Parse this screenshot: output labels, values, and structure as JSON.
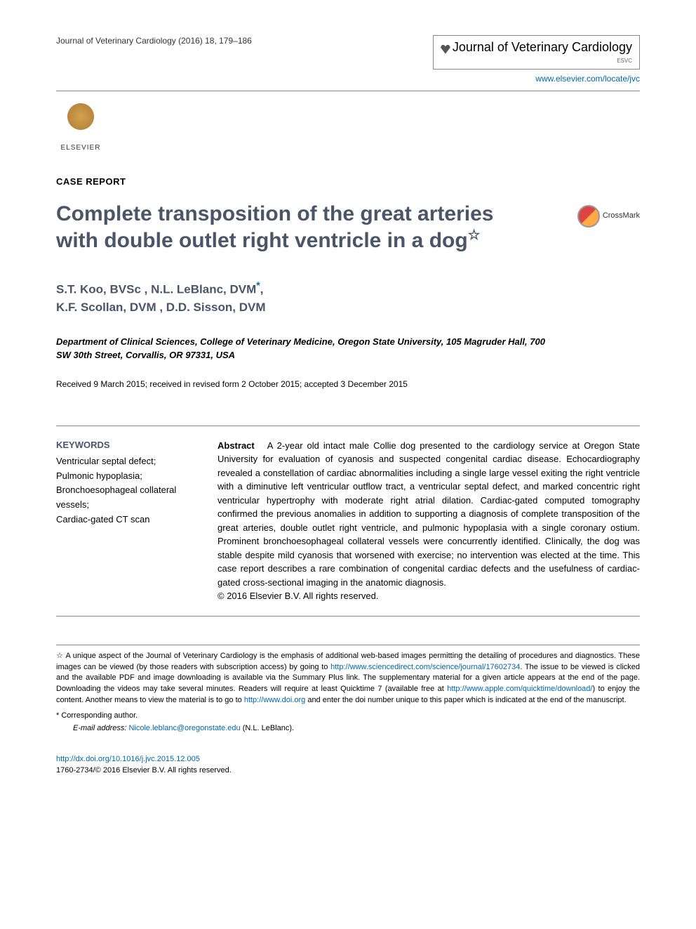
{
  "header": {
    "citation": "Journal of Veterinary Cardiology (2016) 18, 179–186",
    "journal_badge_title": "Journal of Veterinary Cardiology",
    "journal_badge_sub": "ESVC",
    "publisher_name": "ELSEVIER",
    "journal_url": "www.elsevier.com/locate/jvc"
  },
  "article": {
    "section_label": "CASE REPORT",
    "title": "Complete transposition of the great arteries with double outlet right ventricle in a dog",
    "title_footnote_marker": "☆",
    "crossmark_label": "CrossMark",
    "authors_line1": "S.T. Koo, BVSc , N.L. LeBlanc, DVM",
    "authors_corresponding_marker": "*",
    "authors_line1_end": ",",
    "authors_line2": "K.F. Scollan, DVM , D.D. Sisson, DVM",
    "affiliation": "Department of Clinical Sciences, College of Veterinary Medicine, Oregon State University, 105 Magruder Hall, 700 SW 30th Street, Corvallis, OR 97331, USA",
    "dates": "Received 9 March 2015; received in revised form 2 October 2015; accepted 3 December 2015"
  },
  "keywords": {
    "heading": "KEYWORDS",
    "items": "Ventricular septal defect;\nPulmonic hypoplasia;\nBronchoesophageal collateral vessels;\nCardiac-gated CT scan"
  },
  "abstract": {
    "label": "Abstract",
    "text": "A 2-year old intact male Collie dog presented to the cardiology service at Oregon State University for evaluation of cyanosis and suspected congenital cardiac disease. Echocardiography revealed a constellation of cardiac abnormalities including a single large vessel exiting the right ventricle with a diminutive left ventricular outflow tract, a ventricular septal defect, and marked concentric right ventricular hypertrophy with moderate right atrial dilation. Cardiac-gated computed tomography confirmed the previous anomalies in addition to supporting a diagnosis of complete transposition of the great arteries, double outlet right ventricle, and pulmonic hypoplasia with a single coronary ostium. Prominent bronchoesophageal collateral vessels were concurrently identified. Clinically, the dog was stable despite mild cyanosis that worsened with exercise; no intervention was elected at the time. This case report describes a rare combination of congenital cardiac defects and the usefulness of cardiac-gated cross-sectional imaging in the anatomic diagnosis.",
    "copyright": "© 2016 Elsevier B.V. All rights reserved."
  },
  "footnotes": {
    "star_text_1": "A unique aspect of the Journal of Veterinary Cardiology is the emphasis of additional web-based images permitting the detailing of procedures and diagnostics. These images can be viewed (by those readers with subscription access) by going to ",
    "star_link_1": "http://www.sciencedirect.com/science/journal/17602734",
    "star_text_2": ". The issue to be viewed is clicked and the available PDF and image downloading is available via the Summary Plus link. The supplementary material for a given article appears at the end of the page. Downloading the videos may take several minutes. Readers will require at least Quicktime 7 (available free at ",
    "star_link_2": "http://www.apple.com/quicktime/download/",
    "star_text_3": ") to enjoy the content. Another means to view the material is to go to ",
    "star_link_3": "http://www.doi.org",
    "star_text_4": " and enter the doi number unique to this paper which is indicated at the end of the manuscript.",
    "corresponding_label": "* Corresponding author.",
    "email_label": "E-mail address:",
    "email_value": "Nicole.leblanc@oregonstate.edu",
    "email_suffix": " (N.L. LeBlanc)."
  },
  "footer": {
    "doi": "http://dx.doi.org/10.1016/j.jvc.2015.12.005",
    "issn_copyright": "1760-2734/© 2016 Elsevier B.V. All rights reserved."
  },
  "colors": {
    "heading_color": "#4a5568",
    "link_color": "#0066aa",
    "text_color": "#000000",
    "border_color": "#888888"
  }
}
